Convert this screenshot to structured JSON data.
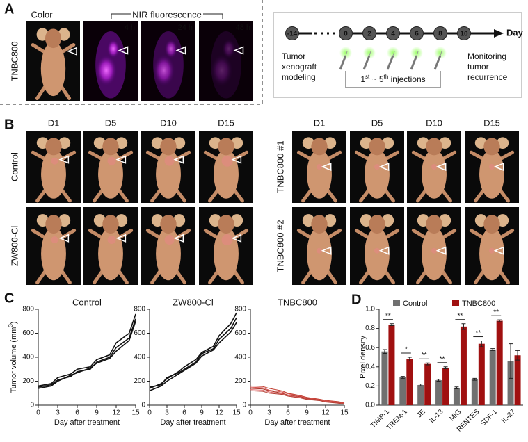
{
  "figure": {
    "panel_labels": [
      "A",
      "B",
      "C",
      "D"
    ],
    "panel_a": {
      "color_label": "Color",
      "nir_label": "NIR fluorescence",
      "times": [
        "4 h",
        "24 h",
        "48 h"
      ],
      "row_label": "TNBC800",
      "timeline": {
        "days": [
          -14,
          0,
          2,
          4,
          6,
          8,
          10
        ],
        "day_label": "Day",
        "modeling": [
          "Tumor",
          "xenograft",
          "modeling"
        ],
        "injections": [
          "1",
          "st",
          " ~ 5",
          "th",
          " injections"
        ],
        "monitoring": [
          "Monitoring",
          "tumor",
          "recurrence"
        ]
      }
    },
    "panel_b": {
      "groups": [
        {
          "days": [
            "D1",
            "D5",
            "D10",
            "D15"
          ],
          "rows": [
            "Control",
            "ZW800-Cl"
          ]
        },
        {
          "days": [
            "D1",
            "D5",
            "D10",
            "D15"
          ],
          "rows": [
            "TNBC800 #1",
            "TNBC800 #2"
          ]
        }
      ]
    }
  },
  "chart_data": [
    {
      "type": "line",
      "title": "Control",
      "xlabel": "Day after treatment",
      "ylabel": [
        "Tumor volume (mm",
        "3",
        ")"
      ],
      "x": [
        0,
        2,
        3,
        5,
        6,
        8,
        9,
        11,
        12,
        14,
        15
      ],
      "xlim": [
        0,
        15
      ],
      "ylim": [
        0,
        800
      ],
      "xticks": [
        0,
        3,
        6,
        9,
        12,
        15
      ],
      "yticks": [
        0,
        200,
        400,
        600,
        800
      ],
      "series": [
        {
          "color": "#111111",
          "values": [
            160,
            180,
            230,
            260,
            300,
            320,
            380,
            420,
            520,
            600,
            760
          ]
        },
        {
          "color": "#111111",
          "values": [
            150,
            170,
            210,
            240,
            280,
            300,
            360,
            400,
            480,
            560,
            720
          ]
        },
        {
          "color": "#111111",
          "values": [
            140,
            160,
            200,
            250,
            270,
            310,
            350,
            390,
            450,
            540,
            700
          ]
        }
      ]
    },
    {
      "type": "line",
      "title": "ZW800-Cl",
      "xlabel": "Day after treatment",
      "x": [
        0,
        2,
        3,
        5,
        6,
        8,
        9,
        11,
        12,
        14,
        15
      ],
      "xlim": [
        0,
        15
      ],
      "ylim": [
        0,
        800
      ],
      "xticks": [
        0,
        3,
        6,
        9,
        12,
        15
      ],
      "yticks": [
        0,
        200,
        400,
        600,
        800
      ],
      "series": [
        {
          "color": "#111111",
          "values": [
            140,
            180,
            220,
            280,
            320,
            380,
            440,
            490,
            580,
            680,
            770
          ]
        },
        {
          "color": "#111111",
          "values": [
            150,
            170,
            230,
            270,
            300,
            360,
            430,
            470,
            550,
            640,
            730
          ]
        },
        {
          "color": "#111111",
          "values": [
            120,
            160,
            200,
            260,
            290,
            350,
            410,
            460,
            520,
            610,
            690
          ]
        }
      ]
    },
    {
      "type": "line",
      "title": "TNBC800",
      "xlabel": "Day after treatment",
      "x": [
        0,
        2,
        3,
        5,
        6,
        8,
        9,
        11,
        12,
        14,
        15
      ],
      "xlim": [
        0,
        15
      ],
      "ylim": [
        0,
        800
      ],
      "xticks": [
        0,
        3,
        6,
        9,
        12,
        15
      ],
      "yticks": [
        0,
        200,
        400,
        600,
        800
      ],
      "series": [
        {
          "color": "#c0392b",
          "values": [
            160,
            155,
            140,
            120,
            100,
            80,
            65,
            50,
            40,
            30,
            20
          ]
        },
        {
          "color": "#d9534f",
          "values": [
            150,
            145,
            125,
            110,
            95,
            75,
            60,
            45,
            35,
            25,
            15
          ]
        },
        {
          "color": "#a93226",
          "values": [
            140,
            135,
            120,
            100,
            85,
            70,
            55,
            42,
            30,
            22,
            12
          ]
        },
        {
          "color": "#e06666",
          "values": [
            130,
            125,
            110,
            95,
            80,
            65,
            50,
            40,
            28,
            18,
            10
          ]
        },
        {
          "color": "#b03a2e",
          "values": [
            120,
            115,
            100,
            90,
            75,
            60,
            48,
            38,
            26,
            16,
            8
          ]
        }
      ]
    },
    {
      "type": "bar",
      "ylabel": "Pixel density",
      "legend": "top",
      "categories": [
        "TIMP-1",
        "TREM-1",
        "JE",
        "IL-13",
        "MIG",
        "RENTES",
        "SDF-1",
        "IL-27"
      ],
      "ylim": [
        0,
        1
      ],
      "yticks": [
        {
          "value": 0,
          "label": "0.0"
        },
        0.2,
        0.4,
        0.6,
        0.8,
        {
          "value": 1,
          "label": "1.0"
        }
      ],
      "series": [
        {
          "name": "Control",
          "color": "#707070",
          "values": [
            0.56,
            0.29,
            0.21,
            0.26,
            0.18,
            0.27,
            0.58,
            0.46
          ],
          "errors": [
            0.02,
            0.01,
            0.01,
            0.01,
            0.01,
            0.01,
            0.01,
            0.18
          ]
        },
        {
          "name": "TNBC800",
          "color": "#a01010",
          "values": [
            0.84,
            0.48,
            0.43,
            0.39,
            0.82,
            0.64,
            0.88,
            0.52
          ],
          "errors": [
            0.01,
            0.02,
            0.01,
            0.01,
            0.03,
            0.03,
            0.01,
            0.05
          ]
        }
      ],
      "significance": [
        "**",
        "*",
        "**",
        "**",
        "**",
        "**",
        "**",
        null
      ]
    }
  ]
}
